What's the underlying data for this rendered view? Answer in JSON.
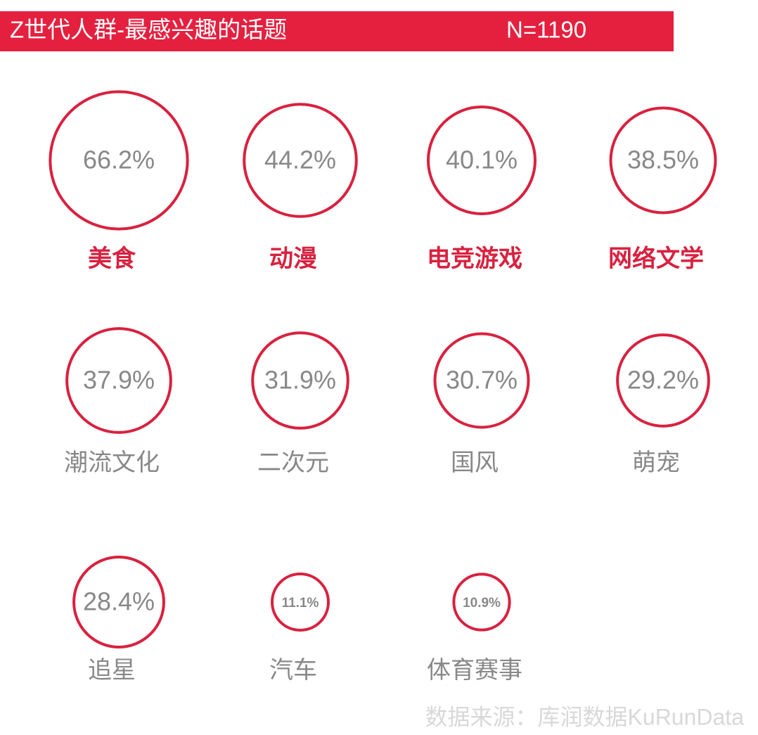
{
  "chart_data": {
    "type": "bubble",
    "title": "Z世代人群-最感兴趣的话题",
    "subtitle": "N=1190",
    "source": "数据来源：库润数据KuRunData",
    "categories": [
      "美食",
      "动漫",
      "电竞游戏",
      "网络文学",
      "潮流文化",
      "二次元",
      "国风",
      "萌宠",
      "追星",
      "汽车",
      "体育赛事"
    ],
    "values": [
      66.2,
      44.2,
      40.1,
      38.5,
      37.9,
      31.9,
      30.7,
      29.2,
      28.4,
      11.1,
      10.9
    ],
    "value_labels": [
      "66.2%",
      "44.2%",
      "40.1%",
      "38.5%",
      "37.9%",
      "31.9%",
      "30.7%",
      "29.2%",
      "28.4%",
      "11.1%",
      "10.9%"
    ],
    "color": "#d9213f",
    "label_colors": [
      "#d9213f",
      "#d9213f",
      "#d9213f",
      "#d9213f",
      "#888888",
      "#888888",
      "#888888",
      "#888888",
      "#888888",
      "#888888",
      "#888888"
    ],
    "title_bar_color": "#e5203f"
  }
}
